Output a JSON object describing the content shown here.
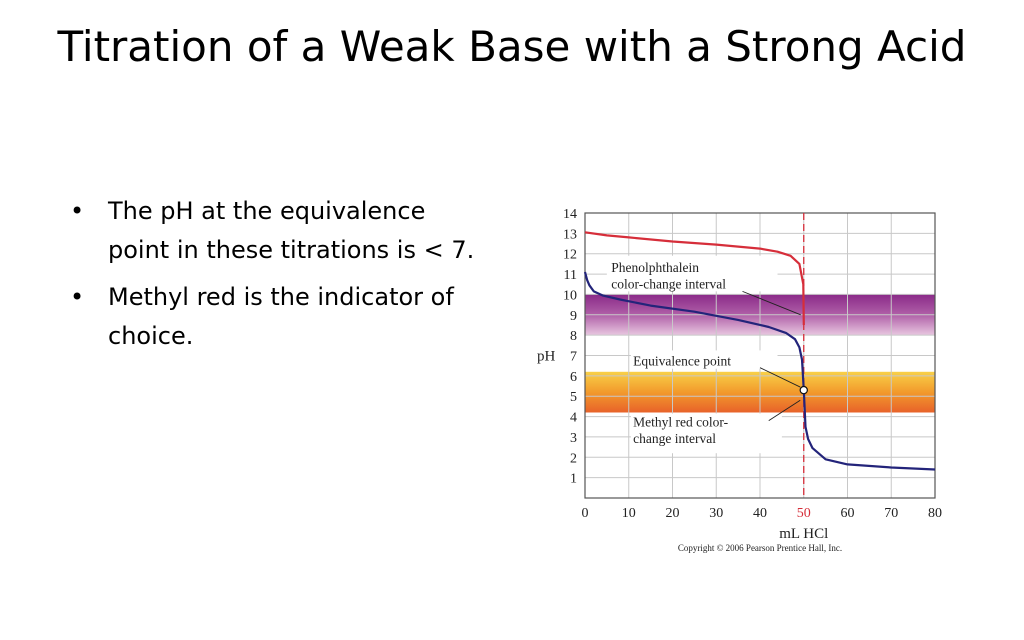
{
  "slide": {
    "title": "Titration of a Weak Base with a Strong Acid",
    "bullets": [
      "The pH at the equivalence point in these titrations is < 7.",
      "Methyl red is the indicator of choice."
    ],
    "bullet_symbol": "•"
  },
  "chart_data": {
    "type": "line",
    "xlabel": "mL HCl",
    "ylabel": "pH",
    "xlim": [
      0,
      80
    ],
    "ylim": [
      0,
      14
    ],
    "x_ticks": [
      0,
      10,
      20,
      30,
      40,
      50,
      60,
      70,
      80
    ],
    "y_ticks": [
      1,
      2,
      3,
      4,
      5,
      6,
      7,
      8,
      9,
      10,
      11,
      12,
      13,
      14
    ],
    "highlight_x_tick": 50,
    "grid": true,
    "series": [
      {
        "color": "#d62e3a",
        "x": [
          0,
          5,
          10,
          20,
          30,
          40,
          44,
          47,
          49,
          49.9,
          50
        ],
        "y": [
          13.05,
          12.9,
          12.8,
          12.6,
          12.45,
          12.25,
          12.1,
          11.9,
          11.5,
          10.5,
          8.5
        ]
      },
      {
        "color": "#23247a",
        "x": [
          0,
          0.5,
          1,
          2,
          4,
          8,
          15,
          25,
          35,
          42,
          46,
          48,
          49,
          49.6,
          50,
          50.4,
          51,
          52,
          55,
          60,
          70,
          80
        ],
        "y": [
          11.1,
          10.7,
          10.45,
          10.15,
          9.95,
          9.75,
          9.45,
          9.15,
          8.75,
          8.4,
          8.1,
          7.8,
          7.4,
          6.8,
          5.3,
          3.5,
          2.9,
          2.45,
          1.9,
          1.65,
          1.5,
          1.4
        ]
      }
    ],
    "bands": [
      {
        "label": "Phenolphthalein color-change interval",
        "range": [
          8.0,
          10.0
        ],
        "colors": [
          "#8a2a88",
          "#b060a8",
          "#e8c6e0"
        ]
      },
      {
        "label": "Methyl red color-change interval",
        "range": [
          4.2,
          6.2
        ],
        "colors": [
          "#f8d048",
          "#f29a2c",
          "#e8622a"
        ]
      }
    ],
    "vline": {
      "x": 50,
      "color": "#d62e3a"
    },
    "equivalence_point": {
      "label": "Equivalence point",
      "x": 50,
      "y": 5.3
    },
    "annotations": {
      "phenol": [
        "Phenolphthalein",
        "color-change interval"
      ],
      "equiv": [
        "Equivalence point"
      ],
      "methyl": [
        "Methyl red color-",
        "change interval"
      ]
    },
    "copyright": "Copyright © 2006 Pearson Prentice Hall, Inc."
  }
}
